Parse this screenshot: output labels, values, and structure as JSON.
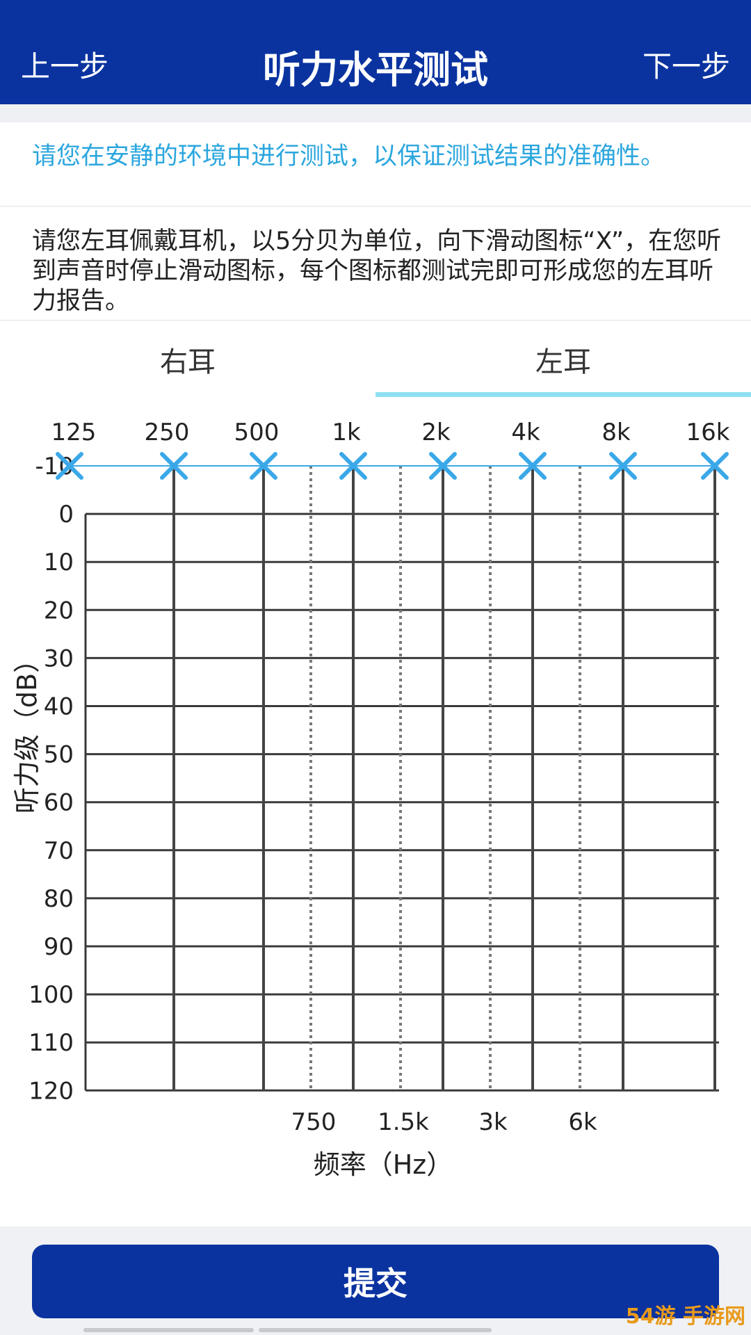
{
  "header": {
    "back_label": "上一步",
    "title": "听力水平测试",
    "next_label": "下一步"
  },
  "notice": "请您在安静的环境中进行测试，以保证测试结果的准确性。",
  "instruction": "请您左耳佩戴耳机，以5分贝为单位，向下滑动图标“X”，在您听到声音时停止滑动图标，每个图标都测试完即可形成您的左耳听力报告。",
  "tabs": [
    {
      "label": "右耳",
      "selected": false
    },
    {
      "label": "左耳",
      "selected": true
    }
  ],
  "submit_label": "提交",
  "watermark": "54游 手游网",
  "colors": {
    "primary": "#0a33a0",
    "notice_text": "#2ba6de",
    "tab_indicator": "#8fe0f0",
    "marker": "#3aa8e8"
  },
  "chart_data": {
    "type": "line",
    "xlabel": "频率（Hz）",
    "ylabel": "听力级（dB）",
    "top_tick_labels": [
      "125",
      "250",
      "500",
      "1k",
      "2k",
      "4k",
      "8k",
      "16k"
    ],
    "bottom_tick_labels": [
      "750",
      "1.5k",
      "3k",
      "6k"
    ],
    "y_tick_labels": [
      "-10",
      "0",
      "10",
      "20",
      "30",
      "40",
      "50",
      "60",
      "70",
      "80",
      "90",
      "100",
      "110",
      "120"
    ],
    "ylim": [
      -10,
      120
    ],
    "y_inverted": true,
    "series": [
      {
        "marker": "X",
        "x": [
          "125",
          "250",
          "500",
          "1k",
          "2k",
          "4k",
          "8k",
          "16k"
        ],
        "values": [
          -10,
          -10,
          -10,
          -10,
          -10,
          -10,
          -10,
          -10
        ]
      }
    ]
  }
}
